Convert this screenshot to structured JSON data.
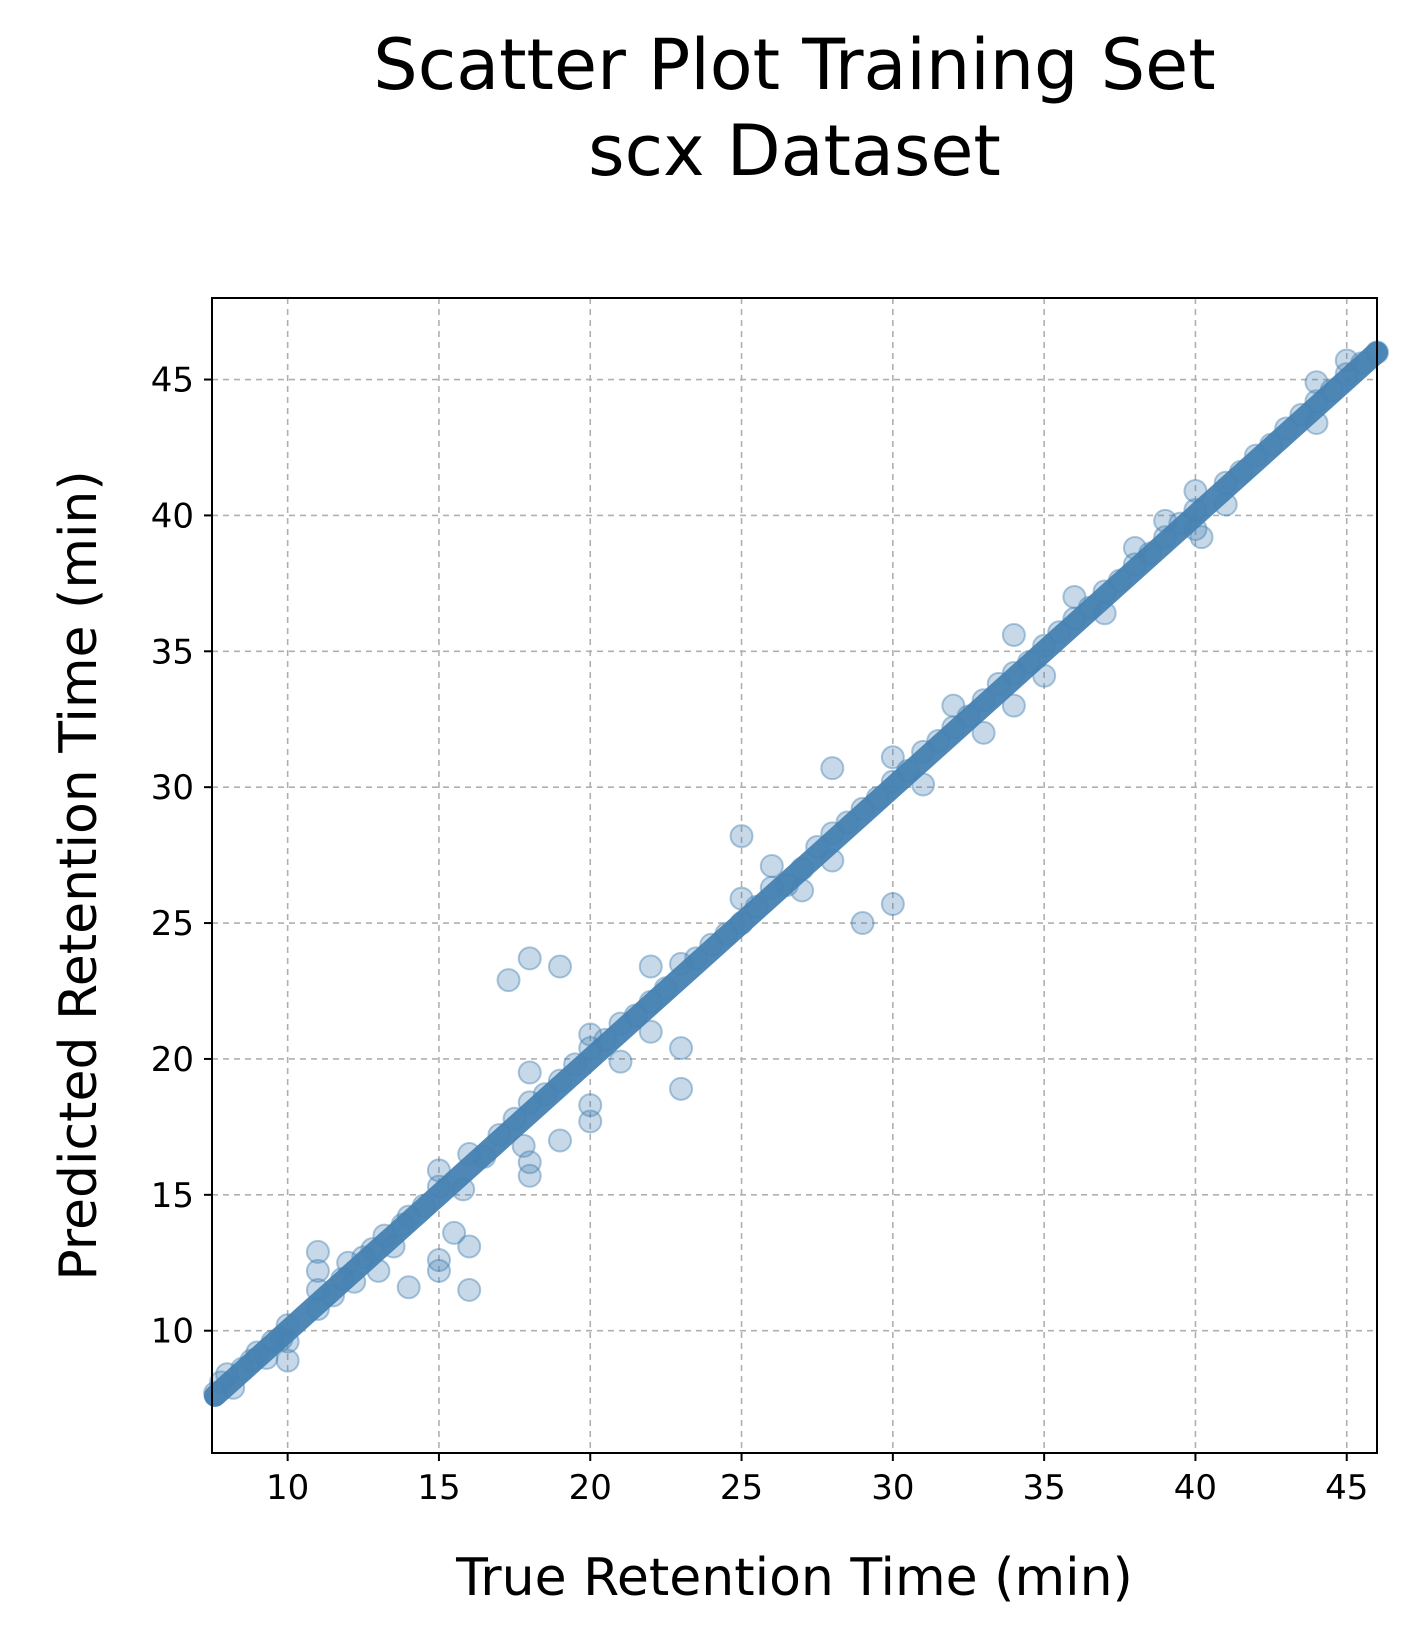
{
  "title_line1": "Scatter Plot Training Set",
  "title_line2": "scx Dataset",
  "chart_data": {
    "type": "scatter",
    "title": "Scatter Plot Training Set\nscx Dataset",
    "xlabel": "True Retention Time (min)",
    "ylabel": "Predicted Retention Time (min)",
    "xlim": [
      7.5,
      46.0
    ],
    "ylim": [
      5.5,
      48.0
    ],
    "xticks": [
      10,
      15,
      20,
      25,
      30,
      35,
      40,
      45
    ],
    "yticks": [
      10,
      15,
      20,
      25,
      30,
      35,
      40,
      45
    ],
    "grid": true,
    "marker_color": "#4682b4",
    "marker_alpha": 0.3,
    "series": [
      {
        "points": [
          [
            7.6,
            7.7
          ],
          [
            7.8,
            8.1
          ],
          [
            8.0,
            8.4
          ],
          [
            8.2,
            7.9
          ],
          [
            8.5,
            8.6
          ],
          [
            8.8,
            8.9
          ],
          [
            9.0,
            9.2
          ],
          [
            9.3,
            9.0
          ],
          [
            9.5,
            9.6
          ],
          [
            9.8,
            9.7
          ],
          [
            10.0,
            10.2
          ],
          [
            10.0,
            9.6
          ],
          [
            10.0,
            8.9
          ],
          [
            11.0,
            10.8
          ],
          [
            11.0,
            11.5
          ],
          [
            11.0,
            12.2
          ],
          [
            11.0,
            12.9
          ],
          [
            11.5,
            11.3
          ],
          [
            11.8,
            11.9
          ],
          [
            12.0,
            12.5
          ],
          [
            12.2,
            11.8
          ],
          [
            12.5,
            12.7
          ],
          [
            12.8,
            13.0
          ],
          [
            13.0,
            12.2
          ],
          [
            13.2,
            13.5
          ],
          [
            13.5,
            13.1
          ],
          [
            13.8,
            13.9
          ],
          [
            14.0,
            11.6
          ],
          [
            14.0,
            14.2
          ],
          [
            14.5,
            14.6
          ],
          [
            15.0,
            12.2
          ],
          [
            15.0,
            12.6
          ],
          [
            15.0,
            15.3
          ],
          [
            15.0,
            15.9
          ],
          [
            15.5,
            13.6
          ],
          [
            15.8,
            15.2
          ],
          [
            16.0,
            13.1
          ],
          [
            16.0,
            11.5
          ],
          [
            16.0,
            16.5
          ],
          [
            16.5,
            16.4
          ],
          [
            17.0,
            17.2
          ],
          [
            17.3,
            22.9
          ],
          [
            17.5,
            17.8
          ],
          [
            17.8,
            16.8
          ],
          [
            18.0,
            23.7
          ],
          [
            18.0,
            15.7
          ],
          [
            18.0,
            16.2
          ],
          [
            18.0,
            18.4
          ],
          [
            18.0,
            19.5
          ],
          [
            18.5,
            18.7
          ],
          [
            19.0,
            23.4
          ],
          [
            19.0,
            17.0
          ],
          [
            19.0,
            19.2
          ],
          [
            19.5,
            19.8
          ],
          [
            20.0,
            17.7
          ],
          [
            20.0,
            18.3
          ],
          [
            20.0,
            20.4
          ],
          [
            20.0,
            20.9
          ],
          [
            20.5,
            20.7
          ],
          [
            21.0,
            21.3
          ],
          [
            21.0,
            19.9
          ],
          [
            21.5,
            21.6
          ],
          [
            22.0,
            22.1
          ],
          [
            22.0,
            23.4
          ],
          [
            22.0,
            21.0
          ],
          [
            22.5,
            22.6
          ],
          [
            23.0,
            20.4
          ],
          [
            23.0,
            18.9
          ],
          [
            23.0,
            23.5
          ],
          [
            23.5,
            23.7
          ],
          [
            24.0,
            24.2
          ],
          [
            24.5,
            24.6
          ],
          [
            25.0,
            28.2
          ],
          [
            25.0,
            25.0
          ],
          [
            25.0,
            25.9
          ],
          [
            25.5,
            25.6
          ],
          [
            26.0,
            26.3
          ],
          [
            26.0,
            27.1
          ],
          [
            26.5,
            26.4
          ],
          [
            27.0,
            27.0
          ],
          [
            27.0,
            26.2
          ],
          [
            27.5,
            27.8
          ],
          [
            28.0,
            30.7
          ],
          [
            28.0,
            28.3
          ],
          [
            28.0,
            27.3
          ],
          [
            28.5,
            28.7
          ],
          [
            29.0,
            25.0
          ],
          [
            29.0,
            29.2
          ],
          [
            29.5,
            29.6
          ],
          [
            30.0,
            25.7
          ],
          [
            30.0,
            30.2
          ],
          [
            30.0,
            31.1
          ],
          [
            30.5,
            30.6
          ],
          [
            31.0,
            31.3
          ],
          [
            31.0,
            30.1
          ],
          [
            31.5,
            31.7
          ],
          [
            32.0,
            32.2
          ],
          [
            32.0,
            33.0
          ],
          [
            32.5,
            32.6
          ],
          [
            33.0,
            33.2
          ],
          [
            33.0,
            32.0
          ],
          [
            33.5,
            33.8
          ],
          [
            34.0,
            34.2
          ],
          [
            34.0,
            35.6
          ],
          [
            34.0,
            33.0
          ],
          [
            34.5,
            34.6
          ],
          [
            35.0,
            35.2
          ],
          [
            35.0,
            34.1
          ],
          [
            35.5,
            35.7
          ],
          [
            36.0,
            36.2
          ],
          [
            36.0,
            37.0
          ],
          [
            36.5,
            36.6
          ],
          [
            37.0,
            37.2
          ],
          [
            37.0,
            36.4
          ],
          [
            37.5,
            37.6
          ],
          [
            38.0,
            38.2
          ],
          [
            38.0,
            38.8
          ],
          [
            38.5,
            38.6
          ],
          [
            39.0,
            39.2
          ],
          [
            39.0,
            39.8
          ],
          [
            39.5,
            39.7
          ],
          [
            40.0,
            40.2
          ],
          [
            40.0,
            40.9
          ],
          [
            40.0,
            39.5
          ],
          [
            40.2,
            39.2
          ],
          [
            41.0,
            41.2
          ],
          [
            41.0,
            40.4
          ],
          [
            41.5,
            41.6
          ],
          [
            42.0,
            42.2
          ],
          [
            42.5,
            42.6
          ],
          [
            43.0,
            43.2
          ],
          [
            43.5,
            43.7
          ],
          [
            44.0,
            44.2
          ],
          [
            44.0,
            44.9
          ],
          [
            44.0,
            43.4
          ],
          [
            44.5,
            44.6
          ],
          [
            45.0,
            45.2
          ],
          [
            45.0,
            45.7
          ],
          [
            45.5,
            45.6
          ],
          [
            46.0,
            46.0
          ]
        ]
      }
    ]
  }
}
